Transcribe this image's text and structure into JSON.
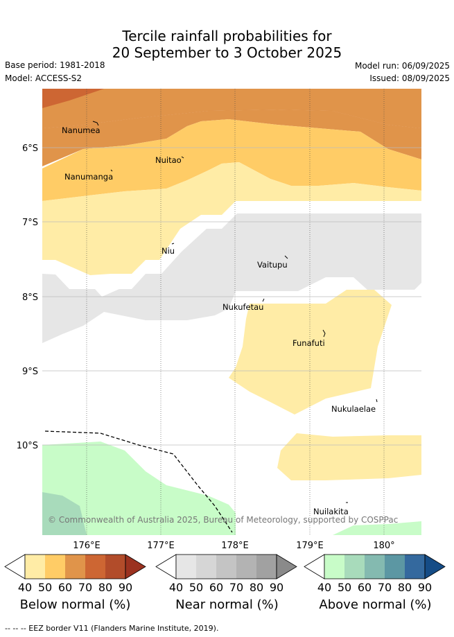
{
  "title": {
    "line1": "Tercile rainfall probabilities for",
    "line2": "20 September to 3 October 2025"
  },
  "meta": {
    "base_period": "Base period: 1981-2018",
    "model": "Model: ACCESS-S2",
    "model_run": "Model run: 06/09/2025",
    "issued": "Issued: 08/09/2025"
  },
  "map": {
    "lat_labels": [
      "6°S",
      "7°S",
      "8°S",
      "9°S",
      "10°S"
    ],
    "lon_labels": [
      "176°E",
      "177°E",
      "178°E",
      "179°E",
      "180°"
    ],
    "places": [
      "Nanumea",
      "Nuitao",
      "Nanumanga",
      "Niu",
      "Vaitupu",
      "Nukufetau",
      "Funafuti",
      "Nukulaelae",
      "Nuilakita"
    ],
    "copyright": "© Commonwealth of Australia 2025, Bureau of Meteorology, supported by COSPPac"
  },
  "colorbars": {
    "below": {
      "label": "Below normal (%)",
      "ticks": [
        "40",
        "50",
        "60",
        "70",
        "80",
        "90"
      ],
      "colors": [
        "#ffeca6",
        "#ffcc66",
        "#e0944a",
        "#cd6633",
        "#b24c2a",
        "#9b3220"
      ]
    },
    "near": {
      "label": "Near normal (%)",
      "ticks": [
        "40",
        "50",
        "60",
        "70",
        "80",
        "90"
      ],
      "colors": [
        "#e6e6e6",
        "#d6d6d6",
        "#c4c4c4",
        "#b3b3b3",
        "#a1a1a1",
        "#8a8a8a"
      ]
    },
    "above": {
      "label": "Above normal (%)",
      "ticks": [
        "40",
        "50",
        "60",
        "70",
        "80",
        "90"
      ],
      "colors": [
        "#c8fcc8",
        "#a8dbbb",
        "#84bab0",
        "#5c97a3",
        "#34699e",
        "#154c86"
      ]
    }
  },
  "footer": "-- -- -- EEZ border V11 (Flanders Marine Institute, 2019)."
}
